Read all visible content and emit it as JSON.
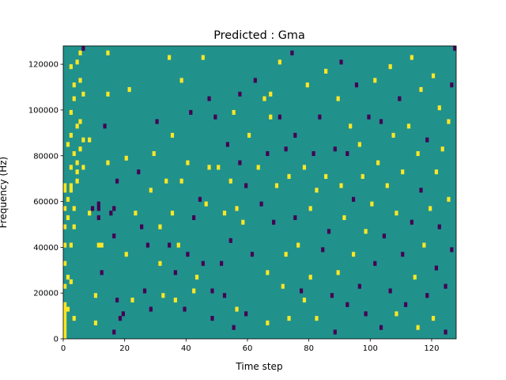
{
  "chart_data": {
    "type": "heatmap",
    "title": "Predicted : Gma",
    "xlabel": "Time step",
    "ylabel": "Frequency (Hz)",
    "xlim": [
      0,
      128
    ],
    "ylim": [
      0,
      128000
    ],
    "x_ticks": [
      0,
      20,
      40,
      60,
      80,
      100,
      120
    ],
    "y_ticks": [
      0,
      20000,
      40000,
      60000,
      80000,
      100000,
      120000
    ],
    "x_tick_labels": [
      "0",
      "20",
      "40",
      "60",
      "80",
      "100",
      "120"
    ],
    "y_tick_labels": [
      "0",
      "20000",
      "40000",
      "60000",
      "80000",
      "100000",
      "120000"
    ],
    "n_time_steps": 128,
    "n_freq_bins": 64,
    "bin_hz": 2000,
    "colormap": "viridis",
    "value_levels": {
      "low": -1,
      "mid": 0,
      "high": 1
    },
    "colors": {
      "low": "#440154",
      "mid": "#21918c",
      "high": "#fde725"
    },
    "background_value": 0,
    "cells": [
      [
        0,
        0,
        6,
        1
      ],
      [
        0,
        6,
        2,
        1
      ],
      [
        1,
        6,
        1,
        1
      ],
      [
        1,
        13,
        1,
        1
      ],
      [
        2,
        32,
        2,
        1
      ],
      [
        2,
        12,
        1,
        1
      ],
      [
        3,
        24,
        1,
        1
      ],
      [
        4,
        36,
        1,
        1
      ],
      [
        5,
        62,
        1,
        1
      ],
      [
        6,
        63,
        1,
        -1
      ],
      [
        0,
        11,
        1,
        1
      ],
      [
        0,
        16,
        1,
        1
      ],
      [
        0,
        20,
        1,
        1
      ],
      [
        0,
        24,
        1,
        1
      ],
      [
        0,
        28,
        1,
        1
      ],
      [
        0,
        32,
        2,
        1
      ],
      [
        1,
        26,
        1,
        1
      ],
      [
        1,
        30,
        1,
        1
      ],
      [
        1,
        42,
        1,
        1
      ],
      [
        2,
        20,
        1,
        1
      ],
      [
        2,
        37,
        1,
        1
      ],
      [
        2,
        44,
        1,
        1
      ],
      [
        2,
        49,
        1,
        1
      ],
      [
        2,
        59,
        1,
        1
      ],
      [
        3,
        4,
        1,
        1
      ],
      [
        3,
        28,
        1,
        1
      ],
      [
        3,
        40,
        1,
        1
      ],
      [
        3,
        52,
        1,
        1
      ],
      [
        3,
        55,
        1,
        1
      ],
      [
        4,
        34,
        1,
        1
      ],
      [
        4,
        38,
        1,
        1
      ],
      [
        4,
        46,
        1,
        1
      ],
      [
        4,
        60,
        1,
        1
      ],
      [
        5,
        41,
        1,
        1
      ],
      [
        5,
        47,
        1,
        1
      ],
      [
        5,
        56,
        1,
        1
      ],
      [
        6,
        37,
        1,
        1
      ],
      [
        6,
        43,
        1,
        1
      ],
      [
        6,
        53,
        1,
        1
      ],
      [
        8,
        43,
        1,
        1
      ],
      [
        8,
        27,
        1,
        1
      ],
      [
        9,
        28,
        1,
        -1
      ],
      [
        10,
        3,
        1,
        1
      ],
      [
        10,
        9,
        1,
        1
      ],
      [
        11,
        20,
        1,
        1
      ],
      [
        11,
        26,
        1,
        -1
      ],
      [
        11,
        28,
        1,
        -1
      ],
      [
        11,
        29,
        1,
        -1
      ],
      [
        12,
        14,
        1,
        -1
      ],
      [
        12,
        20,
        1,
        1
      ],
      [
        13,
        46,
        1,
        -1
      ],
      [
        14,
        62,
        1,
        1
      ],
      [
        14,
        53,
        1,
        1
      ],
      [
        14,
        38,
        1,
        1
      ],
      [
        15,
        27,
        1,
        -1
      ],
      [
        16,
        1,
        1,
        -1
      ],
      [
        16,
        22,
        1,
        -1
      ],
      [
        16,
        28,
        1,
        -1
      ],
      [
        17,
        34,
        1,
        -1
      ],
      [
        17,
        8,
        1,
        -1
      ],
      [
        18,
        4,
        1,
        -1
      ],
      [
        19,
        5,
        1,
        -1
      ],
      [
        20,
        18,
        1,
        1
      ],
      [
        20,
        39,
        1,
        1
      ],
      [
        21,
        54,
        1,
        1
      ],
      [
        22,
        8,
        1,
        1
      ],
      [
        23,
        27,
        1,
        1
      ],
      [
        24,
        36,
        1,
        -1
      ],
      [
        25,
        24,
        1,
        -1
      ],
      [
        26,
        10,
        1,
        -1
      ],
      [
        27,
        20,
        1,
        -1
      ],
      [
        28,
        6,
        1,
        -1
      ],
      [
        28,
        32,
        1,
        1
      ],
      [
        29,
        40,
        1,
        1
      ],
      [
        30,
        47,
        1,
        -1
      ],
      [
        31,
        24,
        1,
        1
      ],
      [
        31,
        16,
        1,
        1
      ],
      [
        32,
        9,
        1,
        1
      ],
      [
        33,
        34,
        1,
        1
      ],
      [
        34,
        61,
        1,
        1
      ],
      [
        34,
        20,
        1,
        -1
      ],
      [
        35,
        27,
        1,
        1
      ],
      [
        35,
        44,
        1,
        1
      ],
      [
        36,
        8,
        1,
        1
      ],
      [
        36,
        14,
        1,
        -1
      ],
      [
        37,
        20,
        1,
        1
      ],
      [
        38,
        34,
        1,
        1
      ],
      [
        38,
        56,
        1,
        1
      ],
      [
        39,
        6,
        1,
        -1
      ],
      [
        40,
        38,
        1,
        1
      ],
      [
        40,
        18,
        1,
        -1
      ],
      [
        41,
        49,
        1,
        -1
      ],
      [
        42,
        26,
        1,
        -1
      ],
      [
        42,
        10,
        1,
        1
      ],
      [
        43,
        13,
        1,
        1
      ],
      [
        44,
        30,
        1,
        -1
      ],
      [
        45,
        61,
        1,
        1
      ],
      [
        45,
        16,
        1,
        -1
      ],
      [
        46,
        29,
        1,
        1
      ],
      [
        47,
        52,
        1,
        -1
      ],
      [
        47,
        37,
        1,
        1
      ],
      [
        48,
        4,
        1,
        -1
      ],
      [
        48,
        10,
        1,
        -1
      ],
      [
        49,
        48,
        1,
        -1
      ],
      [
        50,
        37,
        1,
        1
      ],
      [
        51,
        16,
        1,
        -1
      ],
      [
        52,
        27,
        1,
        1
      ],
      [
        52,
        9,
        1,
        -1
      ],
      [
        53,
        42,
        1,
        -1
      ],
      [
        54,
        21,
        1,
        -1
      ],
      [
        54,
        34,
        1,
        1
      ],
      [
        55,
        49,
        1,
        1
      ],
      [
        55,
        2,
        1,
        -1
      ],
      [
        56,
        28,
        1,
        1
      ],
      [
        56,
        6,
        1,
        1
      ],
      [
        57,
        38,
        1,
        -1
      ],
      [
        57,
        53,
        1,
        -1
      ],
      [
        58,
        25,
        1,
        1
      ],
      [
        59,
        33,
        1,
        -1
      ],
      [
        59,
        5,
        1,
        -1
      ],
      [
        60,
        44,
        1,
        1
      ],
      [
        61,
        18,
        1,
        -1
      ],
      [
        62,
        56,
        1,
        -1
      ],
      [
        63,
        37,
        1,
        1
      ],
      [
        64,
        29,
        1,
        -1
      ],
      [
        65,
        52,
        1,
        1
      ],
      [
        66,
        3,
        1,
        1
      ],
      [
        66,
        40,
        1,
        -1
      ],
      [
        66,
        14,
        1,
        1
      ],
      [
        67,
        48,
        1,
        1
      ],
      [
        67,
        53,
        1,
        1
      ],
      [
        68,
        25,
        1,
        -1
      ],
      [
        69,
        33,
        1,
        1
      ],
      [
        70,
        48,
        1,
        -1
      ],
      [
        70,
        60,
        1,
        1
      ],
      [
        71,
        11,
        1,
        1
      ],
      [
        72,
        41,
        1,
        -1
      ],
      [
        72,
        18,
        1,
        1
      ],
      [
        73,
        35,
        1,
        1
      ],
      [
        73,
        4,
        1,
        1
      ],
      [
        74,
        62,
        1,
        -1
      ],
      [
        75,
        26,
        1,
        -1
      ],
      [
        75,
        44,
        1,
        -1
      ],
      [
        76,
        20,
        1,
        1
      ],
      [
        77,
        10,
        1,
        -1
      ],
      [
        78,
        37,
        1,
        1
      ],
      [
        78,
        8,
        1,
        1
      ],
      [
        79,
        55,
        1,
        1
      ],
      [
        80,
        13,
        1,
        1
      ],
      [
        80,
        28,
        1,
        1
      ],
      [
        81,
        40,
        1,
        -1
      ],
      [
        82,
        32,
        1,
        1
      ],
      [
        82,
        4,
        1,
        1
      ],
      [
        83,
        48,
        1,
        -1
      ],
      [
        84,
        19,
        1,
        -1
      ],
      [
        85,
        35,
        1,
        1
      ],
      [
        85,
        58,
        1,
        1
      ],
      [
        86,
        23,
        1,
        -1
      ],
      [
        87,
        9,
        1,
        -1
      ],
      [
        88,
        41,
        1,
        -1
      ],
      [
        88,
        1,
        1,
        -1
      ],
      [
        89,
        52,
        1,
        1
      ],
      [
        89,
        14,
        1,
        1
      ],
      [
        90,
        33,
        1,
        1
      ],
      [
        90,
        60,
        1,
        -1
      ],
      [
        91,
        26,
        1,
        1
      ],
      [
        92,
        40,
        1,
        -1
      ],
      [
        92,
        7,
        1,
        -1
      ],
      [
        93,
        46,
        1,
        1
      ],
      [
        94,
        18,
        1,
        1
      ],
      [
        94,
        30,
        1,
        -1
      ],
      [
        95,
        55,
        1,
        -1
      ],
      [
        96,
        11,
        1,
        -1
      ],
      [
        96,
        42,
        1,
        1
      ],
      [
        97,
        35,
        1,
        1
      ],
      [
        98,
        5,
        1,
        -1
      ],
      [
        98,
        23,
        1,
        1
      ],
      [
        99,
        48,
        1,
        -1
      ],
      [
        100,
        29,
        1,
        1
      ],
      [
        101,
        56,
        1,
        1
      ],
      [
        101,
        16,
        1,
        -1
      ],
      [
        102,
        38,
        1,
        1
      ],
      [
        103,
        2,
        1,
        -1
      ],
      [
        103,
        47,
        1,
        -1
      ],
      [
        104,
        22,
        1,
        -1
      ],
      [
        105,
        33,
        1,
        1
      ],
      [
        106,
        59,
        1,
        1
      ],
      [
        106,
        10,
        1,
        -1
      ],
      [
        107,
        44,
        1,
        1
      ],
      [
        108,
        27,
        1,
        1
      ],
      [
        108,
        5,
        1,
        1
      ],
      [
        109,
        52,
        1,
        -1
      ],
      [
        110,
        18,
        1,
        -1
      ],
      [
        110,
        36,
        1,
        1
      ],
      [
        111,
        7,
        1,
        -1
      ],
      [
        112,
        46,
        1,
        1
      ],
      [
        113,
        25,
        1,
        -1
      ],
      [
        113,
        61,
        1,
        1
      ],
      [
        114,
        13,
        1,
        1
      ],
      [
        115,
        40,
        1,
        1
      ],
      [
        115,
        2,
        1,
        1
      ],
      [
        116,
        54,
        1,
        1
      ],
      [
        116,
        32,
        1,
        -1
      ],
      [
        117,
        20,
        1,
        1
      ],
      [
        118,
        9,
        1,
        -1
      ],
      [
        118,
        43,
        1,
        -1
      ],
      [
        119,
        28,
        1,
        1
      ],
      [
        120,
        57,
        1,
        1
      ],
      [
        120,
        4,
        1,
        1
      ],
      [
        121,
        36,
        1,
        1
      ],
      [
        121,
        15,
        1,
        -1
      ],
      [
        122,
        50,
        1,
        1
      ],
      [
        122,
        24,
        1,
        -1
      ],
      [
        123,
        41,
        1,
        1
      ],
      [
        124,
        1,
        1,
        -1
      ],
      [
        124,
        11,
        1,
        -1
      ],
      [
        125,
        30,
        1,
        1
      ],
      [
        125,
        47,
        1,
        1
      ],
      [
        126,
        19,
        1,
        -1
      ],
      [
        126,
        55,
        1,
        -1
      ],
      [
        127,
        63,
        1,
        -1
      ]
    ]
  }
}
